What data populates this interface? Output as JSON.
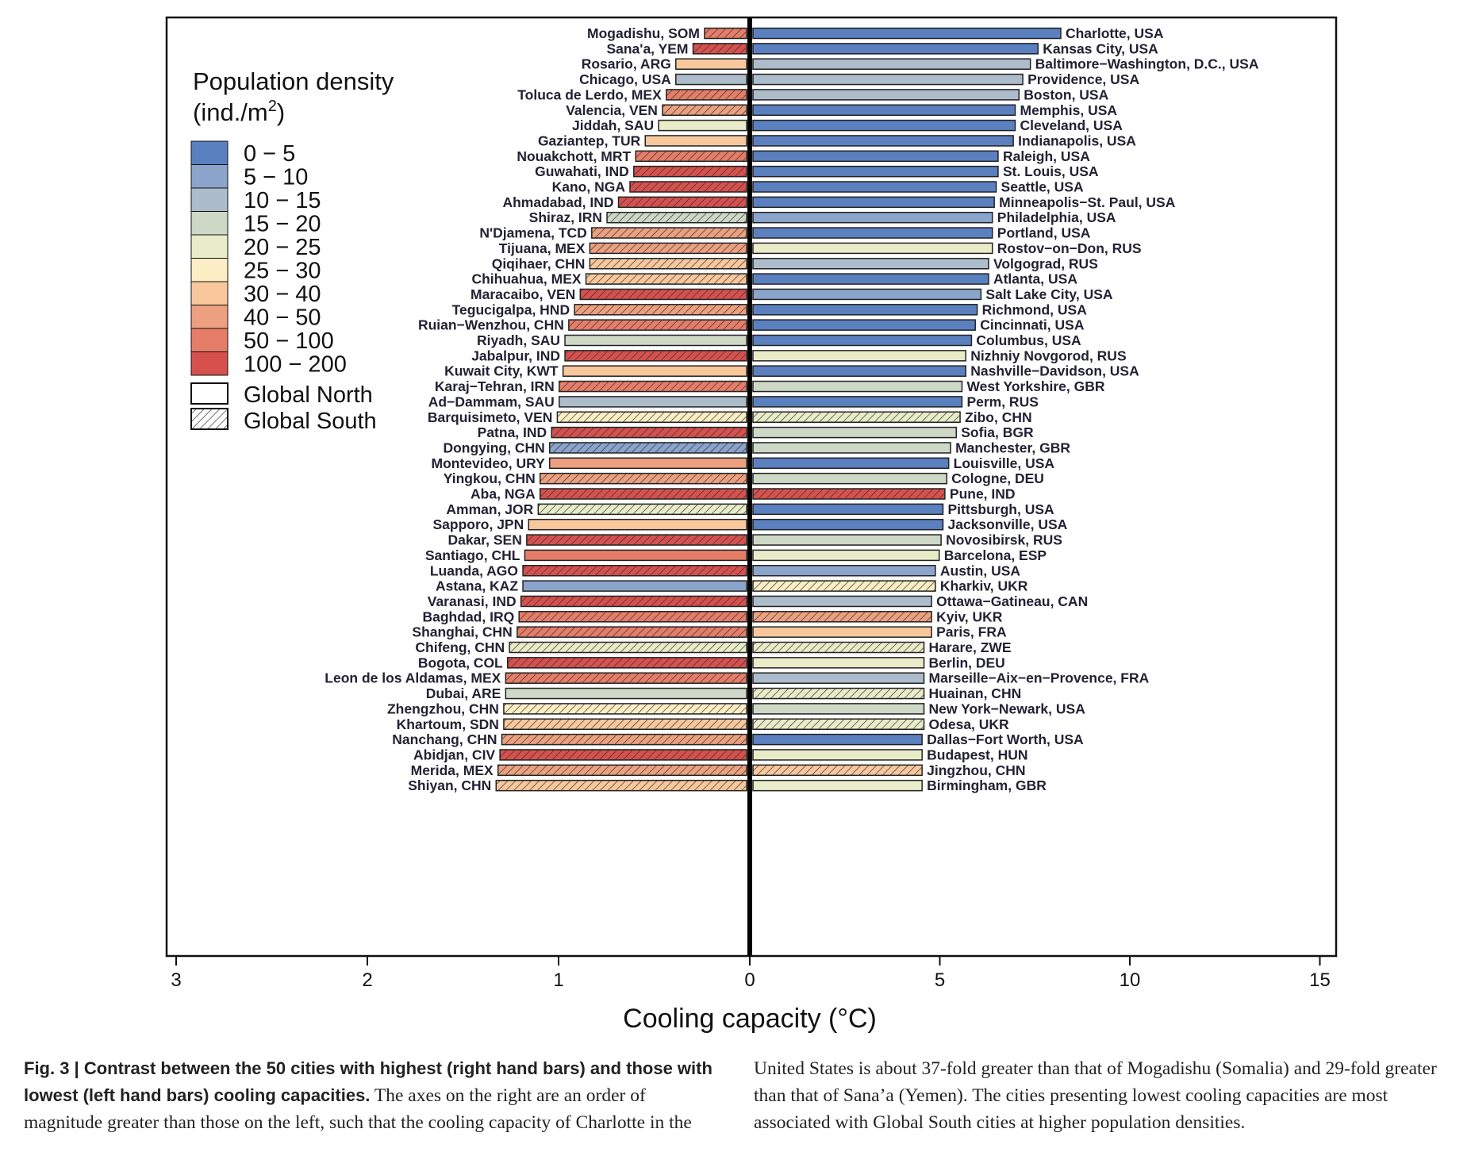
{
  "chart_data": {
    "type": "bar",
    "xlabel": "Cooling capacity (°C)",
    "left_axis": {
      "range": [
        3,
        0
      ],
      "ticks": [
        "3",
        "2",
        "1",
        "0"
      ]
    },
    "right_axis": {
      "range": [
        0,
        15
      ],
      "ticks": [
        "5",
        "10",
        "15"
      ]
    },
    "legend": {
      "title_line1": "Population density",
      "title_line2_prefix": "(ind./m",
      "title_line2_sup": "2",
      "title_line2_suffix": ")",
      "position": "top-left",
      "bins": [
        {
          "label": "0 − 5",
          "color": "#5b80c0"
        },
        {
          "label": "5 − 10",
          "color": "#8aa4cc"
        },
        {
          "label": "10 − 15",
          "color": "#adbccb"
        },
        {
          "label": "15 − 20",
          "color": "#cdd8c6"
        },
        {
          "label": "20 − 25",
          "color": "#e8ecc8"
        },
        {
          "label": "25 − 30",
          "color": "#fbeec4"
        },
        {
          "label": "30 − 40",
          "color": "#f8c89c"
        },
        {
          "label": "40 − 50",
          "color": "#eda07f"
        },
        {
          "label": "50 − 100",
          "color": "#e57d68"
        },
        {
          "label": "100 − 200",
          "color": "#d6504d"
        }
      ],
      "region_north": "Global North",
      "region_south": "Global South"
    },
    "left_series": [
      {
        "city": "Mogadishu, SOM",
        "value": 0.22,
        "bin": 8,
        "south": true
      },
      {
        "city": "Sana'a, YEM",
        "value": 0.28,
        "bin": 9,
        "south": true
      },
      {
        "city": "Rosario, ARG",
        "value": 0.37,
        "bin": 6,
        "south": false
      },
      {
        "city": "Chicago, USA",
        "value": 0.37,
        "bin": 2,
        "south": false
      },
      {
        "city": "Toluca de Lerdo, MEX",
        "value": 0.42,
        "bin": 8,
        "south": true
      },
      {
        "city": "Valencia, VEN",
        "value": 0.44,
        "bin": 7,
        "south": true
      },
      {
        "city": "Jiddah, SAU",
        "value": 0.46,
        "bin": 4,
        "south": false
      },
      {
        "city": "Gaziantep, TUR",
        "value": 0.53,
        "bin": 6,
        "south": false
      },
      {
        "city": "Nouakchott, MRT",
        "value": 0.58,
        "bin": 8,
        "south": true
      },
      {
        "city": "Guwahati, IND",
        "value": 0.59,
        "bin": 9,
        "south": true
      },
      {
        "city": "Kano, NGA",
        "value": 0.61,
        "bin": 9,
        "south": true
      },
      {
        "city": "Ahmadabad, IND",
        "value": 0.67,
        "bin": 9,
        "south": true
      },
      {
        "city": "Shiraz, IRN",
        "value": 0.73,
        "bin": 3,
        "south": true
      },
      {
        "city": "N'Djamena, TCD",
        "value": 0.81,
        "bin": 7,
        "south": true
      },
      {
        "city": "Tijuana, MEX",
        "value": 0.82,
        "bin": 7,
        "south": true
      },
      {
        "city": "Qiqihaer, CHN",
        "value": 0.82,
        "bin": 6,
        "south": true
      },
      {
        "city": "Chihuahua, MEX",
        "value": 0.84,
        "bin": 6,
        "south": true
      },
      {
        "city": "Maracaibo, VEN",
        "value": 0.87,
        "bin": 9,
        "south": true
      },
      {
        "city": "Tegucigalpa, HND",
        "value": 0.9,
        "bin": 7,
        "south": true
      },
      {
        "city": "Ruian−Wenzhou, CHN",
        "value": 0.93,
        "bin": 8,
        "south": true
      },
      {
        "city": "Riyadh, SAU",
        "value": 0.95,
        "bin": 3,
        "south": false
      },
      {
        "city": "Jabalpur, IND",
        "value": 0.95,
        "bin": 9,
        "south": true
      },
      {
        "city": "Kuwait City, KWT",
        "value": 0.96,
        "bin": 6,
        "south": false
      },
      {
        "city": "Karaj−Tehran, IRN",
        "value": 0.98,
        "bin": 8,
        "south": true
      },
      {
        "city": "Ad−Dammam, SAU",
        "value": 0.98,
        "bin": 2,
        "south": false
      },
      {
        "city": "Barquisimeto, VEN",
        "value": 0.99,
        "bin": 5,
        "south": true
      },
      {
        "city": "Patna, IND",
        "value": 1.02,
        "bin": 9,
        "south": true
      },
      {
        "city": "Dongying, CHN",
        "value": 1.03,
        "bin": 1,
        "south": true
      },
      {
        "city": "Montevideo, URY",
        "value": 1.03,
        "bin": 7,
        "south": false
      },
      {
        "city": "Yingkou, CHN",
        "value": 1.08,
        "bin": 7,
        "south": true
      },
      {
        "city": "Aba, NGA",
        "value": 1.08,
        "bin": 9,
        "south": true
      },
      {
        "city": "Amman, JOR",
        "value": 1.09,
        "bin": 4,
        "south": true
      },
      {
        "city": "Sapporo, JPN",
        "value": 1.14,
        "bin": 6,
        "south": false
      },
      {
        "city": "Dakar, SEN",
        "value": 1.15,
        "bin": 9,
        "south": true
      },
      {
        "city": "Santiago, CHL",
        "value": 1.16,
        "bin": 8,
        "south": false
      },
      {
        "city": "Luanda, AGO",
        "value": 1.17,
        "bin": 9,
        "south": true
      },
      {
        "city": "Astana, KAZ",
        "value": 1.17,
        "bin": 1,
        "south": false
      },
      {
        "city": "Varanasi, IND",
        "value": 1.18,
        "bin": 9,
        "south": true
      },
      {
        "city": "Baghdad, IRQ",
        "value": 1.19,
        "bin": 8,
        "south": true
      },
      {
        "city": "Shanghai, CHN",
        "value": 1.2,
        "bin": 8,
        "south": true
      },
      {
        "city": "Chifeng, CHN",
        "value": 1.24,
        "bin": 4,
        "south": true
      },
      {
        "city": "Bogota, COL",
        "value": 1.25,
        "bin": 9,
        "south": true
      },
      {
        "city": "Leon de los Aldamas, MEX",
        "value": 1.26,
        "bin": 8,
        "south": true
      },
      {
        "city": "Dubai, ARE",
        "value": 1.26,
        "bin": 3,
        "south": false
      },
      {
        "city": "Zhengzhou, CHN",
        "value": 1.27,
        "bin": 5,
        "south": true
      },
      {
        "city": "Khartoum, SDN",
        "value": 1.27,
        "bin": 6,
        "south": true
      },
      {
        "city": "Nanchang, CHN",
        "value": 1.28,
        "bin": 7,
        "south": true
      },
      {
        "city": "Abidjan, CIV",
        "value": 1.29,
        "bin": 9,
        "south": true
      },
      {
        "city": "Merida, MEX",
        "value": 1.3,
        "bin": 7,
        "south": true
      },
      {
        "city": "Shiyan, CHN",
        "value": 1.31,
        "bin": 6,
        "south": true
      }
    ],
    "right_series": [
      {
        "city": "Charlotte, USA",
        "value": 8.1,
        "bin": 0,
        "south": false
      },
      {
        "city": "Kansas City, USA",
        "value": 7.5,
        "bin": 0,
        "south": false
      },
      {
        "city": "Baltimore−Washington, D.C., USA",
        "value": 7.3,
        "bin": 2,
        "south": false
      },
      {
        "city": "Providence, USA",
        "value": 7.1,
        "bin": 2,
        "south": false
      },
      {
        "city": "Boston, USA",
        "value": 7.0,
        "bin": 2,
        "south": false
      },
      {
        "city": "Memphis, USA",
        "value": 6.9,
        "bin": 0,
        "south": false
      },
      {
        "city": "Cleveland, USA",
        "value": 6.9,
        "bin": 0,
        "south": false
      },
      {
        "city": "Indianapolis, USA",
        "value": 6.85,
        "bin": 0,
        "south": false
      },
      {
        "city": "Raleigh, USA",
        "value": 6.45,
        "bin": 0,
        "south": false
      },
      {
        "city": "St. Louis, USA",
        "value": 6.45,
        "bin": 0,
        "south": false
      },
      {
        "city": "Seattle, USA",
        "value": 6.4,
        "bin": 0,
        "south": false
      },
      {
        "city": "Minneapolis−St. Paul, USA",
        "value": 6.35,
        "bin": 0,
        "south": false
      },
      {
        "city": "Philadelphia, USA",
        "value": 6.3,
        "bin": 1,
        "south": false
      },
      {
        "city": "Portland, USA",
        "value": 6.3,
        "bin": 0,
        "south": false
      },
      {
        "city": "Rostov−on−Don, RUS",
        "value": 6.3,
        "bin": 4,
        "south": false
      },
      {
        "city": "Volgograd, RUS",
        "value": 6.2,
        "bin": 2,
        "south": false
      },
      {
        "city": "Atlanta, USA",
        "value": 6.2,
        "bin": 0,
        "south": false
      },
      {
        "city": "Salt Lake City, USA",
        "value": 6.0,
        "bin": 1,
        "south": false
      },
      {
        "city": "Richmond, USA",
        "value": 5.9,
        "bin": 0,
        "south": false
      },
      {
        "city": "Cincinnati, USA",
        "value": 5.85,
        "bin": 0,
        "south": false
      },
      {
        "city": "Columbus, USA",
        "value": 5.75,
        "bin": 0,
        "south": false
      },
      {
        "city": "Nizhniy Novgorod, RUS",
        "value": 5.6,
        "bin": 4,
        "south": false
      },
      {
        "city": "Nashville−Davidson, USA",
        "value": 5.6,
        "bin": 0,
        "south": false
      },
      {
        "city": "West Yorkshire, GBR",
        "value": 5.5,
        "bin": 3,
        "south": false
      },
      {
        "city": "Perm, RUS",
        "value": 5.5,
        "bin": 0,
        "south": false
      },
      {
        "city": "Zibo, CHN",
        "value": 5.45,
        "bin": 4,
        "south": true
      },
      {
        "city": "Sofia, BGR",
        "value": 5.35,
        "bin": 3,
        "south": false
      },
      {
        "city": "Manchester, GBR",
        "value": 5.2,
        "bin": 3,
        "south": false
      },
      {
        "city": "Louisville, USA",
        "value": 5.15,
        "bin": 0,
        "south": false
      },
      {
        "city": "Cologne, DEU",
        "value": 5.1,
        "bin": 3,
        "south": false
      },
      {
        "city": "Pune, IND",
        "value": 5.05,
        "bin": 9,
        "south": true
      },
      {
        "city": "Pittsburgh, USA",
        "value": 5.0,
        "bin": 0,
        "south": false
      },
      {
        "city": "Jacksonville, USA",
        "value": 5.0,
        "bin": 0,
        "south": false
      },
      {
        "city": "Novosibirsk, RUS",
        "value": 4.95,
        "bin": 3,
        "south": false
      },
      {
        "city": "Barcelona, ESP",
        "value": 4.9,
        "bin": 4,
        "south": false
      },
      {
        "city": "Austin, USA",
        "value": 4.8,
        "bin": 1,
        "south": false
      },
      {
        "city": "Kharkiv, UKR",
        "value": 4.8,
        "bin": 5,
        "south": true
      },
      {
        "city": "Ottawa−Gatineau, CAN",
        "value": 4.7,
        "bin": 2,
        "south": false
      },
      {
        "city": "Kyiv, UKR",
        "value": 4.7,
        "bin": 7,
        "south": true
      },
      {
        "city": "Paris, FRA",
        "value": 4.7,
        "bin": 6,
        "south": false
      },
      {
        "city": "Harare, ZWE",
        "value": 4.5,
        "bin": 4,
        "south": true
      },
      {
        "city": "Berlin, DEU",
        "value": 4.5,
        "bin": 4,
        "south": false
      },
      {
        "city": "Marseille−Aix−en−Provence, FRA",
        "value": 4.5,
        "bin": 2,
        "south": false
      },
      {
        "city": "Huainan, CHN",
        "value": 4.5,
        "bin": 4,
        "south": true
      },
      {
        "city": "New York−Newark, USA",
        "value": 4.5,
        "bin": 3,
        "south": false
      },
      {
        "city": "Odesa, UKR",
        "value": 4.5,
        "bin": 4,
        "south": true
      },
      {
        "city": "Dallas−Fort Worth, USA",
        "value": 4.45,
        "bin": 0,
        "south": false
      },
      {
        "city": "Budapest, HUN",
        "value": 4.45,
        "bin": 4,
        "south": false
      },
      {
        "city": "Jingzhou, CHN",
        "value": 4.45,
        "bin": 6,
        "south": true
      },
      {
        "city": "Birmingham, GBR",
        "value": 4.45,
        "bin": 4,
        "south": false
      }
    ]
  },
  "caption": {
    "bold": "Fig. 3 | Contrast between the 50 cities with highest (right hand bars) and those with lowest (left hand bars) cooling capacities.",
    "text": " The axes on the right are an order of magnitude greater than those on the left, such that the cooling capacity of Charlotte in the United States is about 37-fold greater than that of Mogadishu (Somalia) and 29-fold greater than that of Sana’a (Yemen). The cities presenting lowest cooling capacities are most associated with Global South cities at higher population densities."
  }
}
